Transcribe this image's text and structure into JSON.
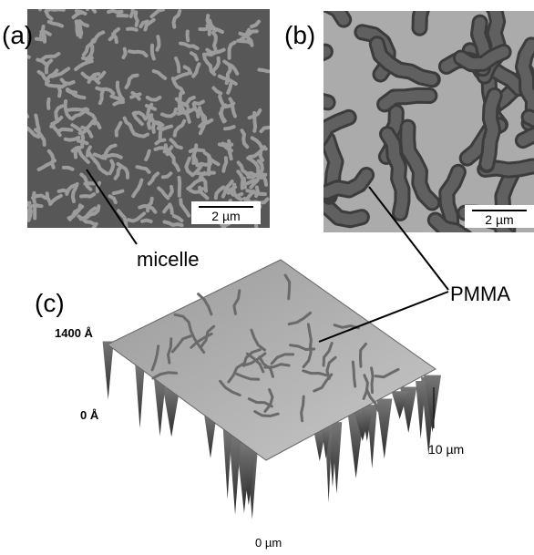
{
  "panels": {
    "a": {
      "label": "(a)",
      "scale_bar": "2 µm",
      "annotation": "micelle"
    },
    "b": {
      "label": "(b)",
      "scale_bar": "2 µm"
    },
    "c": {
      "label": "(c)",
      "z_ticks": [
        "1400 Å",
        "0 Å"
      ],
      "x_start": "0 µm",
      "x_end": "10 µm"
    }
  },
  "annotation": "PMMA"
}
